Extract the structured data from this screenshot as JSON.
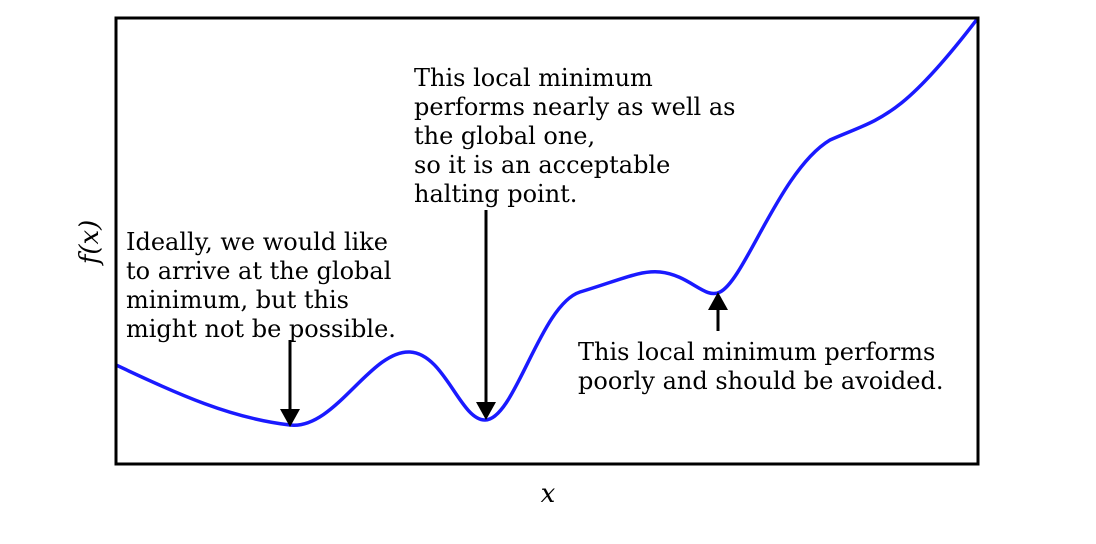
{
  "axes": {
    "xlabel": "x",
    "ylabel": "f(x)"
  },
  "colors": {
    "curve": "#1a1aff",
    "frame": "#000000",
    "arrow": "#000000"
  },
  "curve": {
    "description_points_x": [
      0,
      0.2,
      0.34,
      0.43,
      0.55,
      0.68,
      0.75,
      0.87,
      1.0
    ],
    "description_points_y": [
      0.22,
      0.06,
      0.21,
      0.08,
      0.39,
      0.43,
      0.38,
      0.71,
      1.0
    ]
  },
  "annotations": {
    "global_minimum": "Ideally, we would like\nto arrive at the global\nminimum, but this\nmight not be possible.",
    "acceptable_minimum": "This local minimum\nperforms nearly as well as\nthe global one,\nso it is an acceptable\nhalting point.",
    "poor_minimum": "This local minimum performs\npoorly and should be avoided."
  }
}
